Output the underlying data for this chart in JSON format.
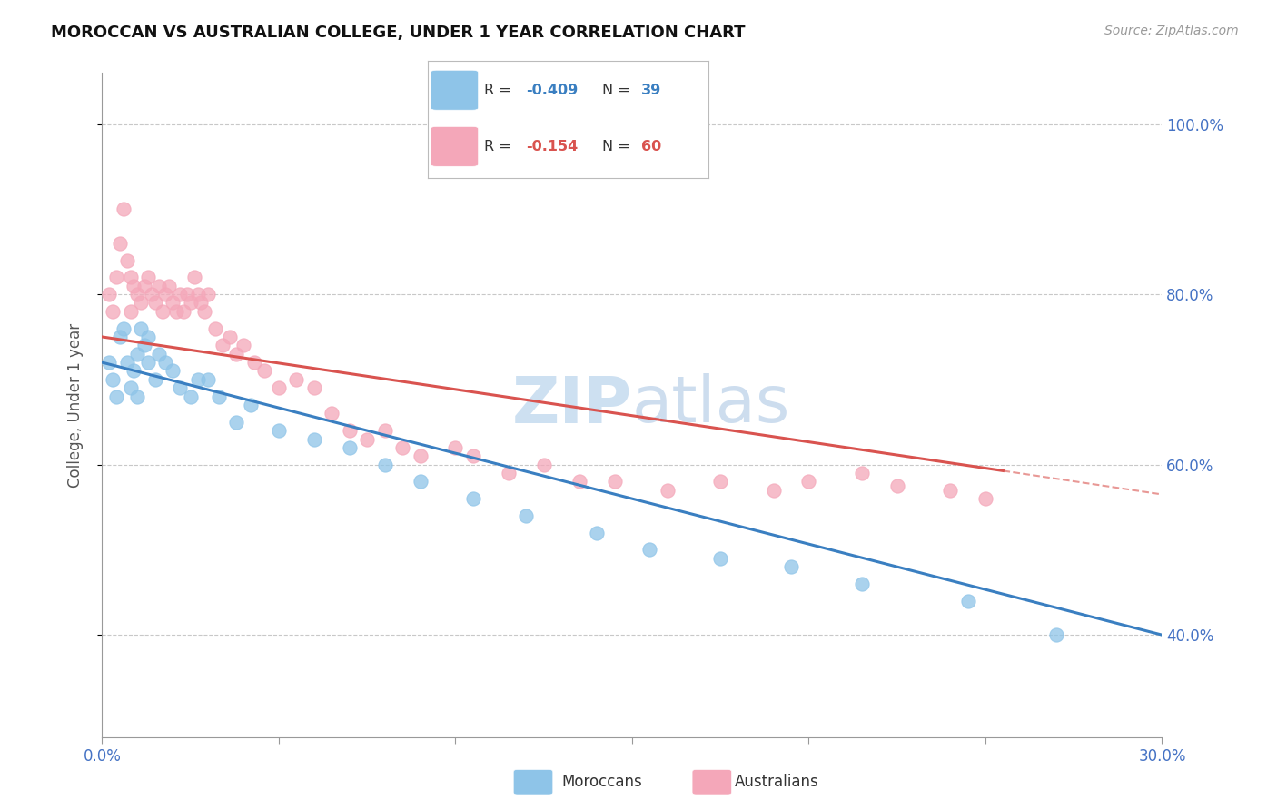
{
  "title": "MOROCCAN VS AUSTRALIAN COLLEGE, UNDER 1 YEAR CORRELATION CHART",
  "source": "Source: ZipAtlas.com",
  "ylabel": "College, Under 1 year",
  "xlim": [
    0.0,
    0.3
  ],
  "ylim": [
    0.28,
    1.06
  ],
  "xticks": [
    0.0,
    0.05,
    0.1,
    0.15,
    0.2,
    0.25,
    0.3
  ],
  "yticks": [
    0.4,
    0.6,
    0.8,
    1.0
  ],
  "ytick_labels": [
    "40.0%",
    "60.0%",
    "80.0%",
    "100.0%"
  ],
  "moroccan_R": -0.409,
  "moroccan_N": 39,
  "australian_R": -0.154,
  "australian_N": 60,
  "moroccan_color": "#8ec4e8",
  "australian_color": "#f4a7b9",
  "moroccan_line_color": "#3a7fc1",
  "australian_line_color": "#d9534f",
  "grid_color": "#c8c8c8",
  "axis_color": "#999999",
  "tick_color": "#4472c4",
  "watermark_color": "#c8ddf0",
  "moroccan_x": [
    0.002,
    0.003,
    0.004,
    0.005,
    0.006,
    0.007,
    0.008,
    0.009,
    0.01,
    0.01,
    0.011,
    0.012,
    0.013,
    0.013,
    0.015,
    0.016,
    0.018,
    0.02,
    0.022,
    0.025,
    0.027,
    0.03,
    0.033,
    0.038,
    0.042,
    0.05,
    0.06,
    0.07,
    0.08,
    0.09,
    0.105,
    0.12,
    0.14,
    0.155,
    0.175,
    0.195,
    0.215,
    0.245,
    0.27
  ],
  "moroccan_y": [
    0.72,
    0.7,
    0.68,
    0.75,
    0.76,
    0.72,
    0.69,
    0.71,
    0.73,
    0.68,
    0.76,
    0.74,
    0.72,
    0.75,
    0.7,
    0.73,
    0.72,
    0.71,
    0.69,
    0.68,
    0.7,
    0.7,
    0.68,
    0.65,
    0.67,
    0.64,
    0.63,
    0.62,
    0.6,
    0.58,
    0.56,
    0.54,
    0.52,
    0.5,
    0.49,
    0.48,
    0.46,
    0.44,
    0.4
  ],
  "australian_x": [
    0.002,
    0.003,
    0.004,
    0.005,
    0.006,
    0.007,
    0.008,
    0.008,
    0.009,
    0.01,
    0.011,
    0.012,
    0.013,
    0.014,
    0.015,
    0.016,
    0.017,
    0.018,
    0.019,
    0.02,
    0.021,
    0.022,
    0.023,
    0.024,
    0.025,
    0.026,
    0.027,
    0.028,
    0.029,
    0.03,
    0.032,
    0.034,
    0.036,
    0.038,
    0.04,
    0.043,
    0.046,
    0.05,
    0.055,
    0.06,
    0.065,
    0.07,
    0.075,
    0.08,
    0.085,
    0.09,
    0.1,
    0.105,
    0.115,
    0.125,
    0.135,
    0.145,
    0.16,
    0.175,
    0.19,
    0.2,
    0.215,
    0.225,
    0.24,
    0.25
  ],
  "australian_y": [
    0.8,
    0.78,
    0.82,
    0.86,
    0.9,
    0.84,
    0.82,
    0.78,
    0.81,
    0.8,
    0.79,
    0.81,
    0.82,
    0.8,
    0.79,
    0.81,
    0.78,
    0.8,
    0.81,
    0.79,
    0.78,
    0.8,
    0.78,
    0.8,
    0.79,
    0.82,
    0.8,
    0.79,
    0.78,
    0.8,
    0.76,
    0.74,
    0.75,
    0.73,
    0.74,
    0.72,
    0.71,
    0.69,
    0.7,
    0.69,
    0.66,
    0.64,
    0.63,
    0.64,
    0.62,
    0.61,
    0.62,
    0.61,
    0.59,
    0.6,
    0.58,
    0.58,
    0.57,
    0.58,
    0.57,
    0.58,
    0.59,
    0.575,
    0.57,
    0.56
  ]
}
